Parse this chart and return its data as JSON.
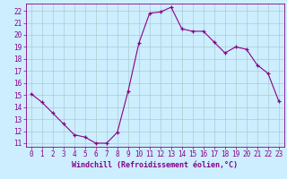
{
  "xlabel": "Windchill (Refroidissement éolien,°C)",
  "ylabel": "",
  "x_values": [
    0,
    1,
    2,
    3,
    4,
    5,
    6,
    7,
    8,
    9,
    10,
    11,
    12,
    13,
    14,
    15,
    16,
    17,
    18,
    19,
    20,
    21,
    22,
    23
  ],
  "y_values": [
    15.1,
    14.4,
    13.5,
    12.6,
    11.7,
    11.5,
    11.0,
    11.0,
    11.9,
    15.3,
    19.3,
    21.8,
    21.9,
    22.3,
    20.5,
    20.3,
    20.3,
    19.4,
    18.5,
    19.0,
    18.8,
    17.5,
    16.8,
    14.5
  ],
  "line_color": "#880088",
  "marker": "+",
  "marker_color": "#880088",
  "bg_color": "#cceeff",
  "grid_color": "#aacccc",
  "tick_color": "#880088",
  "label_color": "#880088",
  "ylim_min": 10.7,
  "ylim_max": 22.6,
  "xlim_min": -0.5,
  "xlim_max": 23.5,
  "yticks": [
    11,
    12,
    13,
    14,
    15,
    16,
    17,
    18,
    19,
    20,
    21,
    22
  ],
  "xticks": [
    0,
    1,
    2,
    3,
    4,
    5,
    6,
    7,
    8,
    9,
    10,
    11,
    12,
    13,
    14,
    15,
    16,
    17,
    18,
    19,
    20,
    21,
    22,
    23
  ],
  "tick_fontsize": 5.5,
  "xlabel_fontsize": 6.0
}
